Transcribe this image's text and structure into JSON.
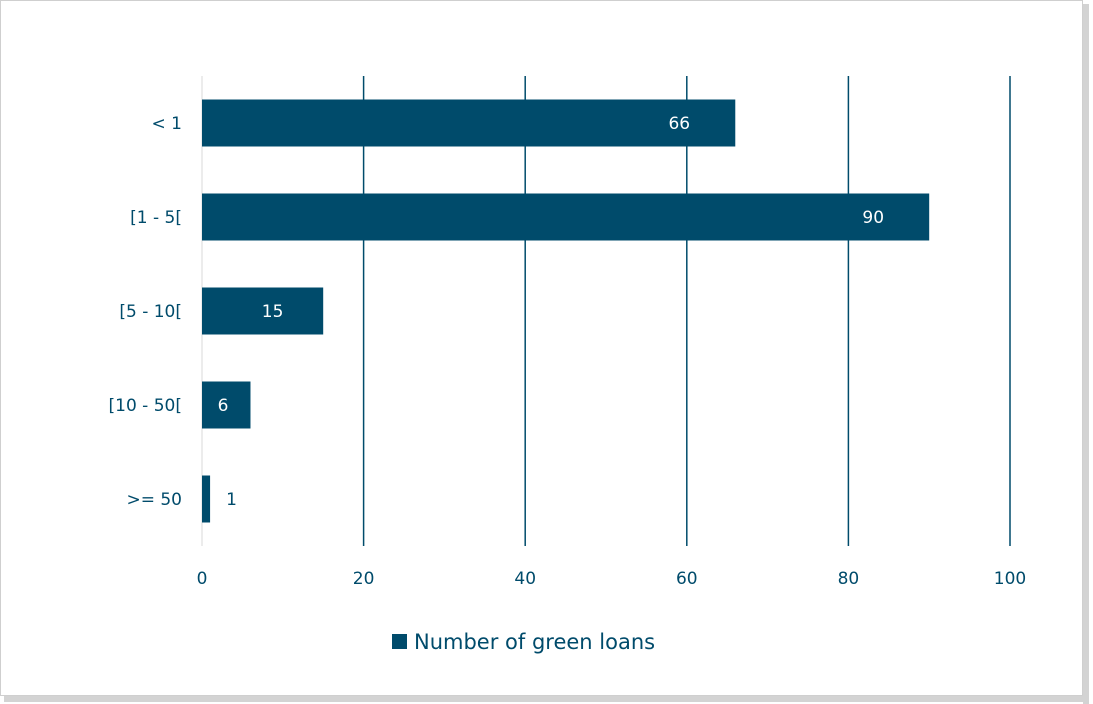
{
  "chart_data": {
    "type": "bar",
    "orientation": "horizontal",
    "categories": [
      "< 1",
      "[1 - 5[",
      "[5 - 10[",
      "[10 - 50[",
      ">= 50"
    ],
    "series": [
      {
        "name": "Number of green loans",
        "values": [
          66,
          90,
          15,
          6,
          1
        ],
        "color": "#004b6b"
      }
    ],
    "xlim": [
      0,
      100
    ],
    "x_ticks": [
      0,
      20,
      40,
      60,
      80,
      100
    ],
    "grid": "vertical",
    "legend": "bottom-center",
    "data_labels": [
      "66",
      "90",
      "15",
      "6",
      "1"
    ]
  },
  "colors": {
    "bar": "#004b6b",
    "gridline": "#004b6b",
    "axis_text": "#004b6b",
    "label_inside": "#ffffff"
  }
}
